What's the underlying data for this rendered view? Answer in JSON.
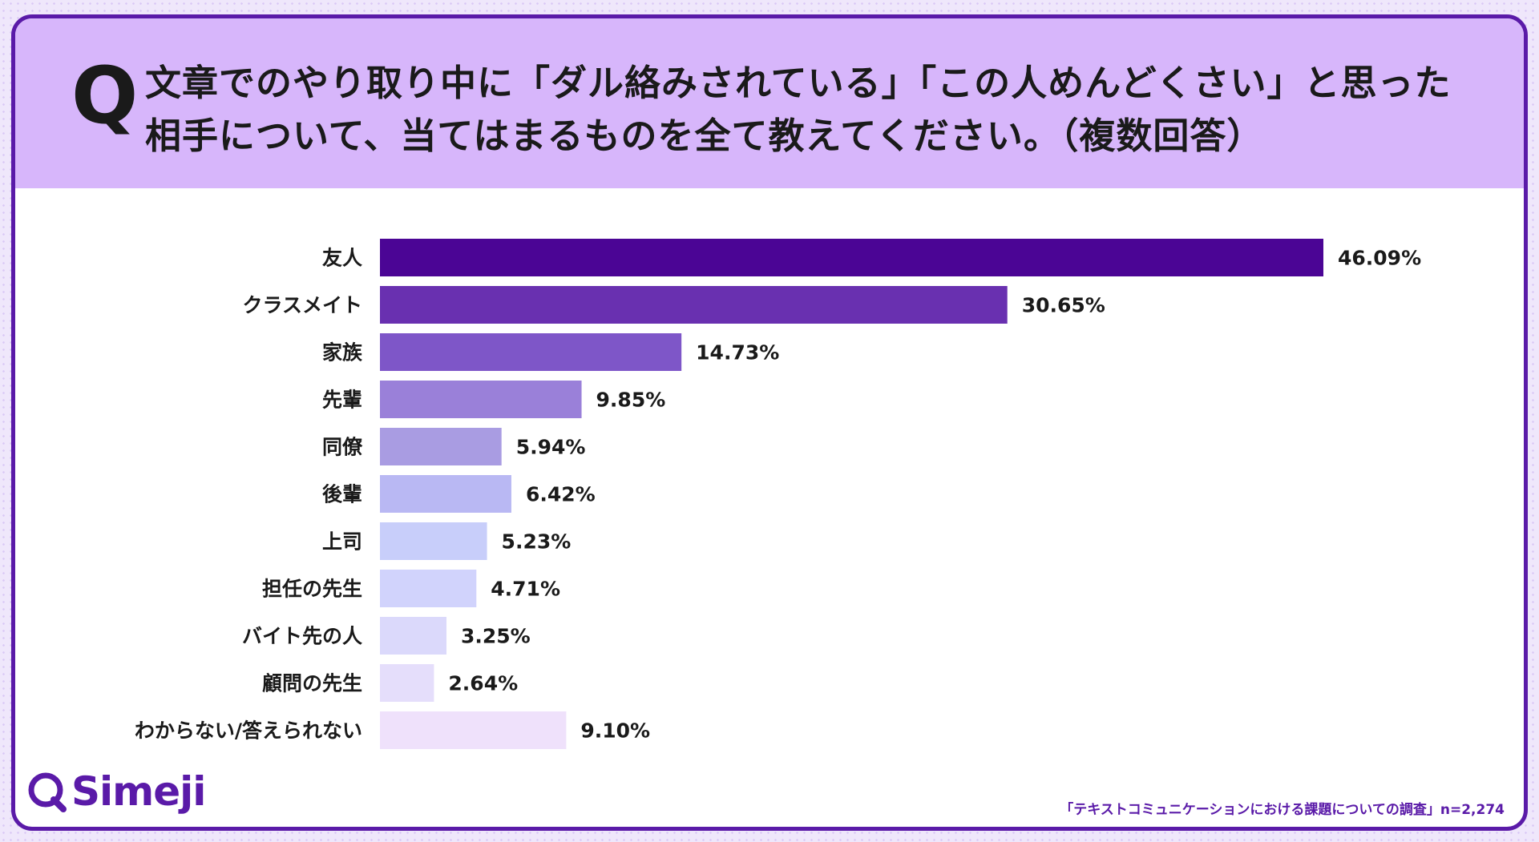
{
  "header": {
    "q_mark": "Q",
    "question_line1": "文章でのやり取り中に「ダル絡みされている」「この人めんどくさい」と思った",
    "question_line2": "相手について、当てはまるものを全て教えてください。（複数回答）"
  },
  "chart_data": {
    "type": "bar",
    "orientation": "horizontal",
    "title": "文章でのやり取り中に「ダル絡みされている」「この人めんどくさい」と思った相手について、当てはまるものを全て教えてください。（複数回答）",
    "categories": [
      "友人",
      "クラスメイト",
      "家族",
      "先輩",
      "同僚",
      "後輩",
      "上司",
      "担任の先生",
      "バイト先の人",
      "顧問の先生",
      "わからない/答えられない"
    ],
    "values": [
      46.09,
      30.65,
      14.73,
      9.85,
      5.94,
      6.42,
      5.23,
      4.71,
      3.25,
      2.64,
      9.1
    ],
    "value_labels": [
      "46.09%",
      "30.65%",
      "14.73%",
      "9.85%",
      "5.94%",
      "6.42%",
      "5.23%",
      "4.71%",
      "3.25%",
      "2.64%",
      "9.10%"
    ],
    "colors": [
      "#4b0595",
      "#6930b0",
      "#7e56c8",
      "#9a80d9",
      "#a99ce2",
      "#b9b8f3",
      "#c8cefa",
      "#d1d3fc",
      "#dbd9fb",
      "#e5defb",
      "#efe1fb"
    ],
    "xlabel": "",
    "ylabel": "",
    "xlim": [
      0,
      46.09
    ],
    "grid": false,
    "legend": "none"
  },
  "logo": {
    "text": "Simeji",
    "icon": "speech-bubble-icon",
    "color": "#5a1aa8"
  },
  "footer": {
    "source": "「テキストコミュニケーションにおける課題についての調査」n=2,274"
  },
  "theme": {
    "header_bg": "#d7b6fb",
    "border": "#5a1aa8"
  }
}
